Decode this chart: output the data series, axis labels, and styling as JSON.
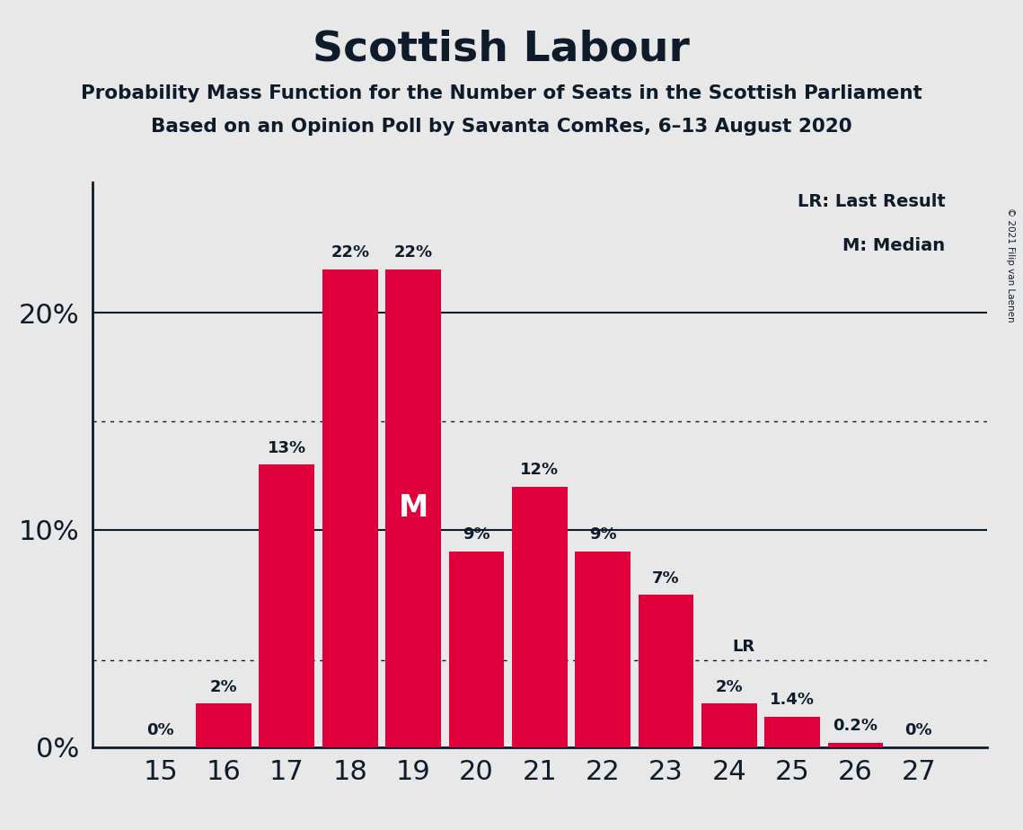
{
  "title": "Scottish Labour",
  "subtitle1": "Probability Mass Function for the Number of Seats in the Scottish Parliament",
  "subtitle2": "Based on an Opinion Poll by Savanta ComRes, 6–13 August 2020",
  "copyright": "© 2021 Filip van Laenen",
  "categories": [
    15,
    16,
    17,
    18,
    19,
    20,
    21,
    22,
    23,
    24,
    25,
    26,
    27
  ],
  "values": [
    0.0,
    2.0,
    13.0,
    22.0,
    22.0,
    9.0,
    12.0,
    9.0,
    7.0,
    2.0,
    1.4,
    0.2,
    0.0
  ],
  "bar_color": "#E0003C",
  "background_color": "#E8E8E8",
  "text_color": "#0D1B2A",
  "label_texts": [
    "0%",
    "2%",
    "13%",
    "22%",
    "22%",
    "9%",
    "12%",
    "9%",
    "7%",
    "2%",
    "1.4%",
    "0.2%",
    "0%"
  ],
  "median_seat": 19,
  "lr_seat": 24,
  "lr_value": 4.0,
  "dotted_line_1": 15.0,
  "dotted_line_2": 4.0,
  "ylim": [
    0,
    26
  ],
  "legend_lr": "LR: Last Result",
  "legend_m": "M: Median"
}
